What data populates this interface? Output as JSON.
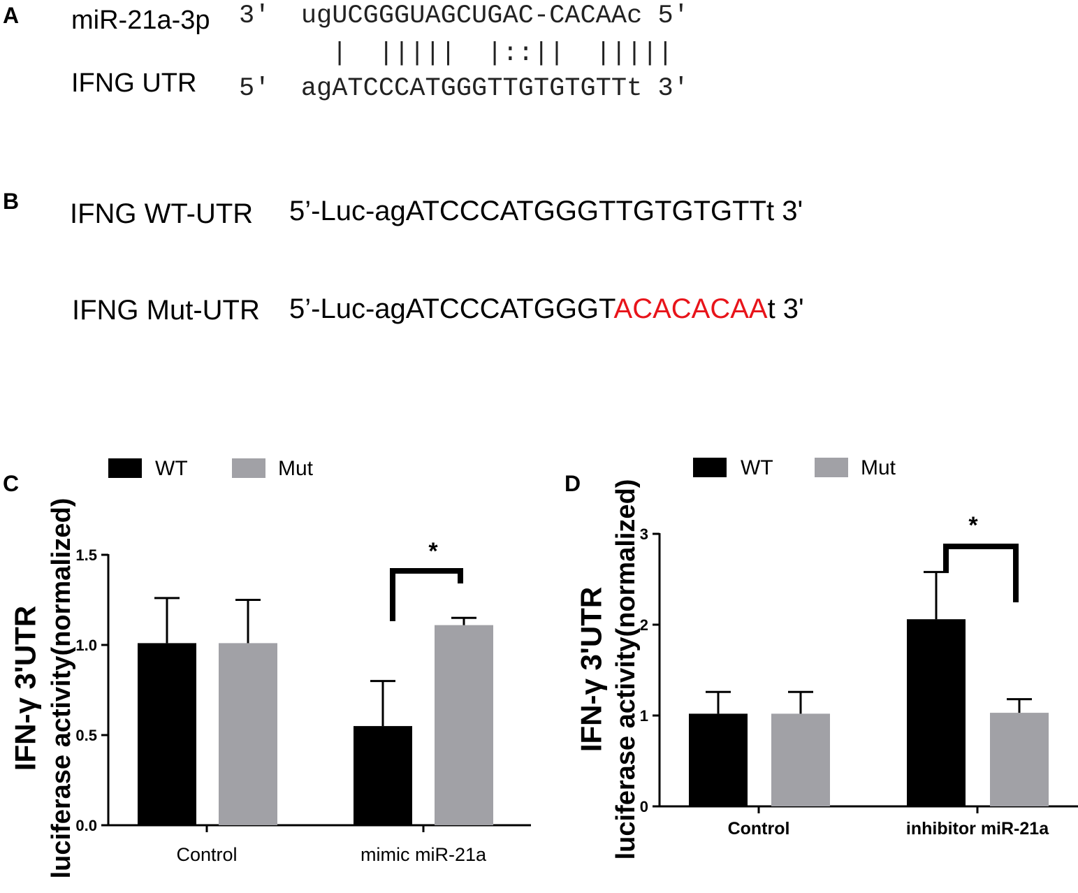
{
  "panel_a": {
    "letter": "A",
    "mirna_label": "miR-21a-3p",
    "mirna_seq": "3'  ugUCGGGUAGCUGAC-CACAAc 5'",
    "pairing": "|  |||||  |::||  |||||",
    "utr_label": "IFNG UTR",
    "utr_seq": "5'  agATCCCATGGGTTGTGTGTTt 3'"
  },
  "panel_b": {
    "letter": "B",
    "wt_label": "IFNG WT-UTR",
    "wt_seq": "5’-Luc-agATCCCATGGGTTGTGTGTTt 3'",
    "mut_label": "IFNG Mut-UTR",
    "mut_seq_prefix": "5’-Luc-agATCCCATGGGT",
    "mut_seq_mutated": "ACACACAA",
    "mut_seq_suffix": "t 3'"
  },
  "colors": {
    "wt": "#000000",
    "mut": "#a1a1a6",
    "mutated_bases": "#e8141a"
  },
  "chart_data": [
    {
      "panel": "C",
      "type": "bar",
      "ylabel_line1": "IFN-γ 3'UTR",
      "ylabel_line2": "luciferase activity(normalized)",
      "categories": [
        "Control",
        "mimic miR-21a"
      ],
      "series": [
        {
          "name": "WT",
          "values": [
            1.01,
            0.55
          ],
          "errors": [
            0.25,
            0.25
          ]
        },
        {
          "name": "Mut",
          "values": [
            1.01,
            1.11
          ],
          "errors": [
            0.24,
            0.04
          ]
        }
      ],
      "ylim": [
        0,
        1.5
      ],
      "yticks": [
        "0.0",
        "0.5",
        "1.0",
        "1.5"
      ],
      "significance": [
        {
          "category": "mimic miR-21a",
          "label": "*"
        }
      ],
      "legend": "top"
    },
    {
      "panel": "D",
      "type": "bar",
      "ylabel_line1": "IFN-γ 3'UTR",
      "ylabel_line2": "luciferase activity(normalized)",
      "categories": [
        "Control",
        "inhibitor miR-21a"
      ],
      "series": [
        {
          "name": "WT",
          "values": [
            1.02,
            2.06
          ],
          "errors": [
            0.24,
            0.52
          ]
        },
        {
          "name": "Mut",
          "values": [
            1.02,
            1.03
          ],
          "errors": [
            0.24,
            0.15
          ]
        }
      ],
      "ylim": [
        0,
        3
      ],
      "yticks": [
        "0",
        "1",
        "2",
        "3"
      ],
      "significance": [
        {
          "category": "inhibitor miR-21a",
          "label": "*"
        }
      ],
      "legend": "top"
    }
  ]
}
